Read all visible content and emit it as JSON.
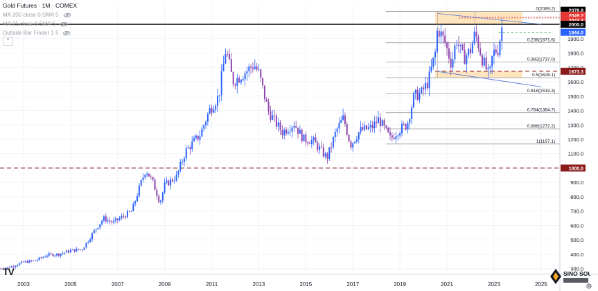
{
  "header": {
    "title": "Gold Futures · 1M · COMEX",
    "indicators": [
      "MA 200 close 0 SMA 5",
      "MA 21 close 0 SMA 5",
      "Outside Bar Finder 1 5"
    ]
  },
  "branding": {
    "logo_text": "SINO SOUND",
    "tv_mark": "TV"
  },
  "colors": {
    "bull": "#2962ff",
    "bear": "#8e44ad",
    "fib": "#9a9a9a",
    "red_line": "#8b1a1a",
    "black_line": "#000000",
    "box_fill": "#ffe0b2",
    "trend": "#5a7fd8"
  },
  "chart_data": {
    "type": "candlestick",
    "y_axis": {
      "ticks": [
        300,
        400,
        500,
        600,
        700,
        800,
        900,
        1000,
        1100,
        1200,
        1300,
        1400,
        1500,
        1600,
        1700,
        1800,
        1900
      ],
      "range": [
        260,
        2140
      ]
    },
    "x_axis": {
      "ticks": [
        "2003",
        "2005",
        "2007",
        "2009",
        "2011",
        "2013",
        "2015",
        "2017",
        "2019",
        "2021",
        "2023",
        "2025"
      ],
      "range": [
        2002.0,
        2025.8
      ]
    },
    "price_labels": [
      {
        "value": 2078.8,
        "text": "2078.8",
        "style": "black"
      },
      {
        "value": 2049.2,
        "text": "2049.2",
        "style": "red"
      },
      {
        "value": 2043.3,
        "text": "2043.3",
        "style": "red"
      },
      {
        "value": 2000.0,
        "text": "2000.0",
        "style": "black"
      },
      {
        "value": 1944.0,
        "text": "1944.0",
        "style": "blue"
      },
      {
        "value": 1673.3,
        "text": "1673.3",
        "style": "darkred"
      },
      {
        "value": 1000.0,
        "text": "1000.0",
        "style": "darkred"
      }
    ],
    "fib_levels": [
      {
        "ratio": "0",
        "price": 2089.2,
        "label": "0(2089.2)"
      },
      {
        "ratio": "0.236",
        "price": 1871.6,
        "label": "0.236(1871.6)"
      },
      {
        "ratio": "0.382",
        "price": 1737.0,
        "label": "0.382(1737.0)"
      },
      {
        "ratio": "0.5",
        "price": 1628.1,
        "label": "0.5(1628.1)"
      },
      {
        "ratio": "0.618",
        "price": 1519.3,
        "label": "0.618(1519.3)"
      },
      {
        "ratio": "0.764",
        "price": 1384.7,
        "label": "0.764(1384.7)"
      },
      {
        "ratio": "0.886",
        "price": 1272.2,
        "label": "0.886(1272.2)"
      },
      {
        "ratio": "1",
        "price": 1167.1,
        "label": "1(1167.1)"
      }
    ],
    "horizontal_lines": [
      {
        "price": 2000,
        "style": "solid-black"
      },
      {
        "price": 1000,
        "style": "dashed-darkred"
      },
      {
        "price": 1673.3,
        "style": "dashed-darkred"
      },
      {
        "price": 2049.2,
        "style": "dashed-red"
      },
      {
        "price": 2043.3,
        "style": "dashed-red"
      },
      {
        "price": 1944,
        "style": "dashed-green"
      }
    ],
    "zones": [
      {
        "x0": 2020.5,
        "x1": 2024.2,
        "y0": 2000,
        "y1": 2089
      },
      {
        "x0": 2020.5,
        "x1": 2024.2,
        "y0": 1630,
        "y1": 1673
      }
    ],
    "trendlines": [
      {
        "x0": 2020.6,
        "y0": 2075,
        "x1": 2025.0,
        "y1": 2000
      },
      {
        "x0": 2020.6,
        "y0": 1672,
        "x1": 2025.0,
        "y1": 1565
      }
    ],
    "series": [
      {
        "x": 2002.0,
        "y": 300
      },
      {
        "x": 2002.5,
        "y": 315
      },
      {
        "x": 2003.0,
        "y": 345
      },
      {
        "x": 2003.5,
        "y": 355
      },
      {
        "x": 2004.0,
        "y": 395
      },
      {
        "x": 2004.5,
        "y": 400
      },
      {
        "x": 2005.0,
        "y": 425
      },
      {
        "x": 2005.5,
        "y": 435
      },
      {
        "x": 2006.0,
        "y": 560
      },
      {
        "x": 2006.4,
        "y": 650
      },
      {
        "x": 2006.8,
        "y": 620
      },
      {
        "x": 2007.2,
        "y": 660
      },
      {
        "x": 2007.6,
        "y": 700
      },
      {
        "x": 2008.0,
        "y": 900
      },
      {
        "x": 2008.2,
        "y": 990
      },
      {
        "x": 2008.5,
        "y": 900
      },
      {
        "x": 2008.8,
        "y": 760
      },
      {
        "x": 2009.0,
        "y": 880
      },
      {
        "x": 2009.5,
        "y": 940
      },
      {
        "x": 2009.9,
        "y": 1120
      },
      {
        "x": 2010.5,
        "y": 1230
      },
      {
        "x": 2010.9,
        "y": 1400
      },
      {
        "x": 2011.3,
        "y": 1500
      },
      {
        "x": 2011.6,
        "y": 1830
      },
      {
        "x": 2011.9,
        "y": 1600
      },
      {
        "x": 2012.3,
        "y": 1650
      },
      {
        "x": 2012.8,
        "y": 1720
      },
      {
        "x": 2013.0,
        "y": 1660
      },
      {
        "x": 2013.4,
        "y": 1400
      },
      {
        "x": 2013.7,
        "y": 1320
      },
      {
        "x": 2014.0,
        "y": 1250
      },
      {
        "x": 2014.5,
        "y": 1310
      },
      {
        "x": 2014.9,
        "y": 1200
      },
      {
        "x": 2015.3,
        "y": 1190
      },
      {
        "x": 2015.9,
        "y": 1070
      },
      {
        "x": 2016.3,
        "y": 1260
      },
      {
        "x": 2016.6,
        "y": 1350
      },
      {
        "x": 2016.9,
        "y": 1160
      },
      {
        "x": 2017.3,
        "y": 1260
      },
      {
        "x": 2017.8,
        "y": 1280
      },
      {
        "x": 2018.1,
        "y": 1340
      },
      {
        "x": 2018.6,
        "y": 1200
      },
      {
        "x": 2018.9,
        "y": 1260
      },
      {
        "x": 2019.3,
        "y": 1300
      },
      {
        "x": 2019.6,
        "y": 1500
      },
      {
        "x": 2019.9,
        "y": 1520
      },
      {
        "x": 2020.2,
        "y": 1600
      },
      {
        "x": 2020.5,
        "y": 1800
      },
      {
        "x": 2020.6,
        "y": 1975
      },
      {
        "x": 2020.9,
        "y": 1880
      },
      {
        "x": 2021.2,
        "y": 1720
      },
      {
        "x": 2021.4,
        "y": 1900
      },
      {
        "x": 2021.7,
        "y": 1760
      },
      {
        "x": 2022.0,
        "y": 1820
      },
      {
        "x": 2022.2,
        "y": 1940
      },
      {
        "x": 2022.5,
        "y": 1760
      },
      {
        "x": 2022.8,
        "y": 1630
      },
      {
        "x": 2022.95,
        "y": 1800
      },
      {
        "x": 2023.2,
        "y": 1830
      },
      {
        "x": 2023.3,
        "y": 1970
      },
      {
        "x": 2023.4,
        "y": 1990
      }
    ]
  }
}
